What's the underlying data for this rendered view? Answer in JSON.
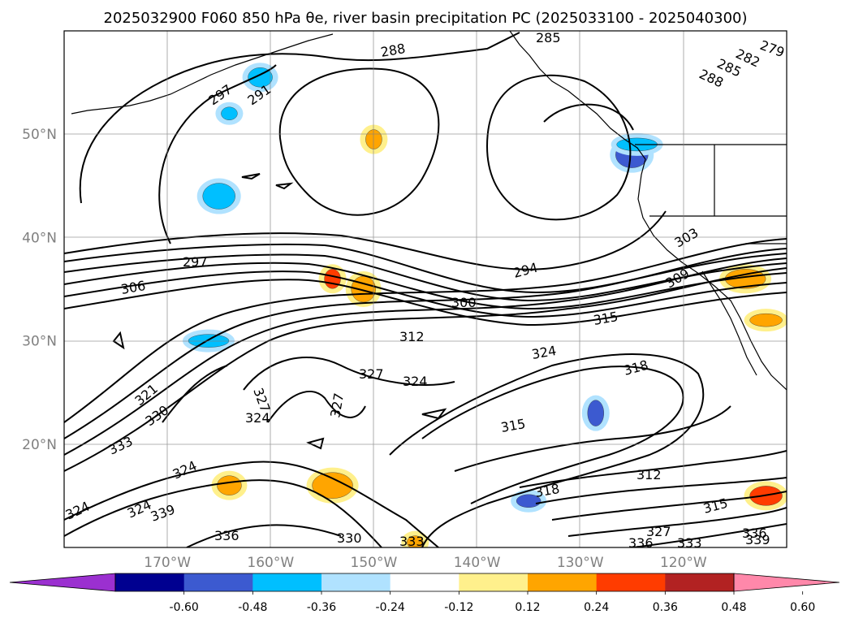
{
  "title": "2025032900 F060 850 hPa θe, river basin precipitation PC (2025033100 - 2025040300)",
  "lon_range": [
    -180,
    -110
  ],
  "lat_range": [
    10,
    60
  ],
  "lat_ticks": [
    {
      "value": 50,
      "label": "50°N"
    },
    {
      "value": 40,
      "label": "40°N"
    },
    {
      "value": 30,
      "label": "30°N"
    },
    {
      "value": 20,
      "label": "20°N"
    }
  ],
  "lon_ticks": [
    {
      "value": -170,
      "label": "170°W"
    },
    {
      "value": -160,
      "label": "160°W"
    },
    {
      "value": -150,
      "label": "150°W"
    },
    {
      "value": -140,
      "label": "140°W"
    },
    {
      "value": -130,
      "label": "130°W"
    },
    {
      "value": -120,
      "label": "120°W"
    }
  ],
  "colorbar": {
    "colors": [
      "#9b30d0",
      "#000090",
      "#3c5ad0",
      "#00bfff",
      "#b0e2ff",
      "#ffffff",
      "#fff08c",
      "#ffa500",
      "#ff3c00",
      "#b22222",
      "#ff88aa"
    ],
    "ticks": [
      "-0.60",
      "-0.48",
      "-0.36",
      "-0.24",
      "-0.12",
      "0.12",
      "0.24",
      "0.36",
      "0.48",
      "0.60"
    ]
  },
  "contour_labels": [
    "288",
    "285",
    "279",
    "282",
    "285",
    "288",
    "297",
    "291",
    "297",
    "306",
    "294",
    "300",
    "303",
    "309",
    "312",
    "315",
    "324",
    "327",
    "324",
    "318",
    "321",
    "330",
    "333",
    "324",
    "327",
    "324",
    "315",
    "327",
    "312",
    "318",
    "315",
    "324",
    "339",
    "336",
    "330",
    "333",
    "336",
    "333",
    "336",
    "339",
    "327",
    "324"
  ],
  "shaded_features": [
    {
      "lon": -164,
      "lat": 52,
      "color": "#00bfff"
    },
    {
      "lon": -161,
      "lat": 55.5,
      "color": "#00bfff"
    },
    {
      "lon": -125,
      "lat": 48,
      "color": "#3c5ad0"
    },
    {
      "lon": -124.5,
      "lat": 49,
      "color": "#00bfff"
    },
    {
      "lon": -154,
      "lat": 36,
      "color": "#ff3c00"
    },
    {
      "lon": -151,
      "lat": 35,
      "color": "#ffa500"
    },
    {
      "lon": -112,
      "lat": 32,
      "color": "#ffa500"
    },
    {
      "lon": -114,
      "lat": 36,
      "color": "#ffa500"
    },
    {
      "lon": -128.5,
      "lat": 23,
      "color": "#3c5ad0"
    },
    {
      "lon": -135,
      "lat": 14.5,
      "color": "#3c5ad0"
    },
    {
      "lon": -112,
      "lat": 15,
      "color": "#ff3c00"
    },
    {
      "lon": -154,
      "lat": 16,
      "color": "#ffa500"
    },
    {
      "lon": -146,
      "lat": 10.5,
      "color": "#ffa500"
    },
    {
      "lon": -164,
      "lat": 16,
      "color": "#ffa500"
    },
    {
      "lon": -165,
      "lat": 44,
      "color": "#00bfff"
    },
    {
      "lon": -166,
      "lat": 30,
      "color": "#00bfff"
    },
    {
      "lon": -150,
      "lat": 49.5,
      "color": "#ffa500"
    }
  ]
}
